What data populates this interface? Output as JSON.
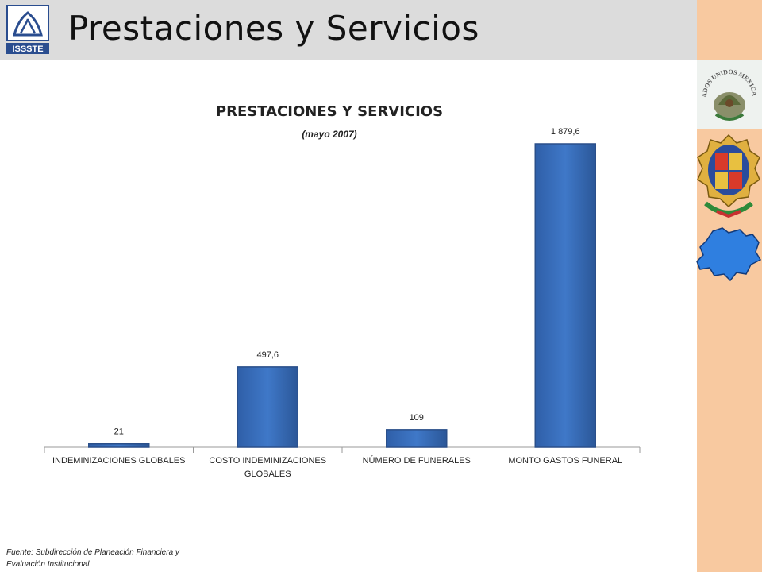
{
  "header": {
    "title": "Prestaciones y Servicios",
    "logo_text": "ISSSTE"
  },
  "side": {
    "seal_text": "ESTADOS UNIDOS MEXICANOS",
    "seal_icon": "mexican-coat-of-arms-icon",
    "state_coat_icon": "state-coat-of-arms-icon",
    "map_icon": "state-map-icon"
  },
  "chart_data": {
    "type": "bar",
    "title": "PRESTACIONES Y SERVICIOS",
    "subtitle": "(mayo 2007)",
    "categories": [
      [
        "INDEMINIZACIONES GLOBALES"
      ],
      [
        "COSTO INDEMINIZACIONES",
        "GLOBALES"
      ],
      [
        "NÚMERO DE FUNERALES"
      ],
      [
        "MONTO GASTOS FUNERAL"
      ]
    ],
    "values": [
      21,
      497.6,
      109,
      1879.6
    ],
    "value_labels": [
      "21",
      "497,6",
      "109",
      "1 879,6"
    ],
    "ylim": [
      0,
      1879.6
    ],
    "grid": false,
    "bar_color": "#3f78c8"
  },
  "footer": {
    "source_line1": "Fuente: Subdirección de Planeación Financiera y",
    "source_line2": "Evaluación Institucional"
  }
}
